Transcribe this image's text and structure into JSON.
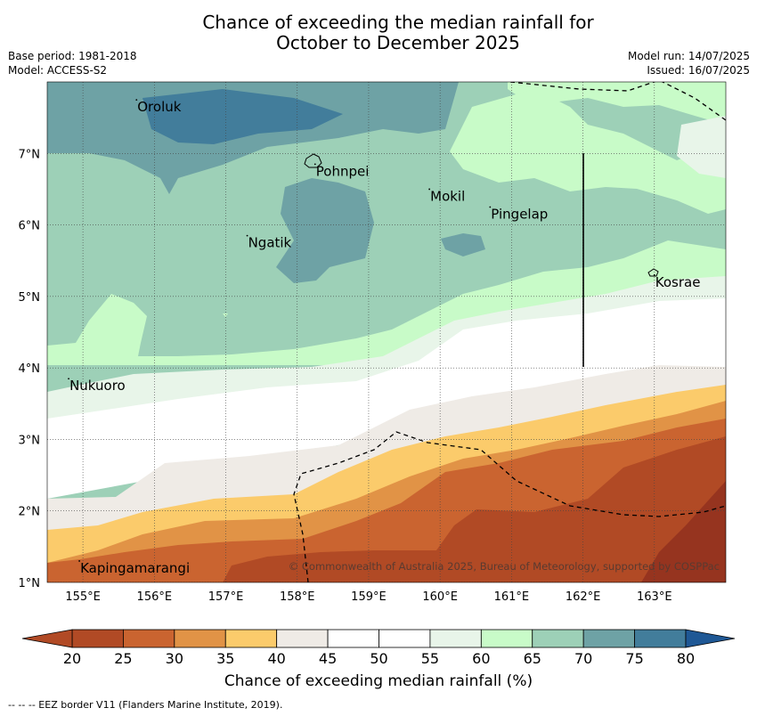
{
  "title_line1": "Chance of exceeding the median rainfall for",
  "title_line2": "October to December 2025",
  "base_period": "Base period: 1981-2018",
  "model": "Model: ACCESS-S2",
  "model_run": "Model run: 14/07/2025",
  "issued": "Issued: 16/07/2025",
  "copyright": "© Commonwealth of Australia 2025, Bureau of Meteorology, supported by COSPPac",
  "colorbar_label": "Chance of exceeding median rainfall (%)",
  "footer": "--  --  -- EEZ border V11 (Flanders Marine Institute, 2019).",
  "lat_labels": [
    "1°N",
    "2°N",
    "3°N",
    "4°N",
    "5°N",
    "6°N",
    "7°N"
  ],
  "lon_labels": [
    "155°E",
    "156°E",
    "157°E",
    "158°E",
    "159°E",
    "160°E",
    "161°E",
    "162°E",
    "163°E"
  ],
  "colorbar_ticks": [
    "20",
    "25",
    "30",
    "35",
    "40",
    "45",
    "50",
    "55",
    "60",
    "65",
    "70",
    "75",
    "80"
  ],
  "colors": {
    "c20": "#b14a25",
    "c25": "#ca6430",
    "c30": "#e19346",
    "c35": "#fbcb6b",
    "c40": "#efebe6",
    "c45": "#ffffff",
    "c50": "#ffffff",
    "c55": "#e8f5e9",
    "c60": "#c8fbc8",
    "c65": "#9dd0b7",
    "c70": "#6ea2a5",
    "c75": "#427d9b",
    "c80": "#1f5895",
    "deep": "#96341f"
  },
  "places": [
    {
      "name": "Oroluk",
      "lon": 155.75,
      "lat": 7.65
    },
    {
      "name": "Pohnpei",
      "lon": 158.25,
      "lat": 6.75
    },
    {
      "name": "Mokil",
      "lon": 159.85,
      "lat": 6.4
    },
    {
      "name": "Pingelap",
      "lon": 160.7,
      "lat": 6.15
    },
    {
      "name": "Ngatik",
      "lon": 157.3,
      "lat": 5.75
    },
    {
      "name": "Kosrae",
      "lon": 163.0,
      "lat": 5.2
    },
    {
      "name": "Nukuoro",
      "lon": 154.8,
      "lat": 3.75
    },
    {
      "name": "Kapingamarangi",
      "lon": 154.95,
      "lat": 1.2
    }
  ]
}
